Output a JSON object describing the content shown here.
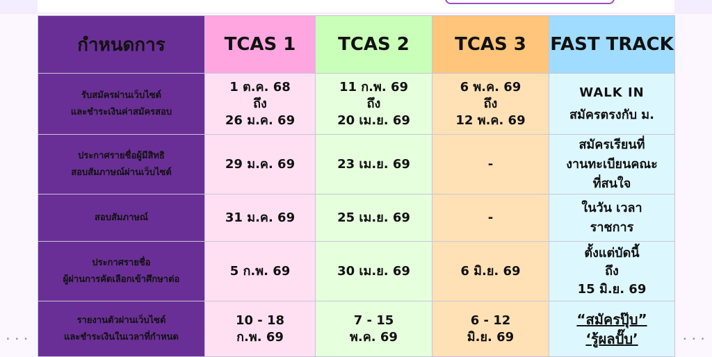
{
  "header": {
    "col0": "กำหนดการ",
    "col1": "TCAS 1",
    "col2": "TCAS 2",
    "col3": "TCAS 3",
    "col4": "FAST TRACK"
  },
  "rows": [
    {
      "label": [
        "รับสมัครผ่านเว็บไซต์",
        "และชำระเงินค่าสมัครสอบ"
      ],
      "tcas1": [
        "1 ต.ค. 68",
        "ถึง",
        "26 ม.ค. 69"
      ],
      "tcas2": [
        "11 ก.พ. 69",
        "ถึง",
        "20 เม.ย. 69"
      ],
      "tcas3": [
        "6 พ.ค. 69",
        "ถึง",
        "12 พ.ค. 69"
      ],
      "fast": [
        "WALK IN",
        "สมัครตรงกับ ม."
      ]
    },
    {
      "label": [
        "ประกาศรายชื่อผู้มีสิทธิ",
        "สอบสัมภาษณ์ผ่านเว็บไซต์"
      ],
      "tcas1": [
        "29 ม.ค. 69"
      ],
      "tcas2": [
        "23 เม.ย. 69"
      ],
      "tcas3": [
        "-"
      ],
      "fast": [
        "สมัครเรียนที่",
        "งานทะเบียนคณะ",
        "ที่สนใจ"
      ]
    },
    {
      "label": [
        "สอบสัมภาษณ์"
      ],
      "tcas1": [
        "31 ม.ค. 69"
      ],
      "tcas2": [
        "25 เม.ย. 69"
      ],
      "tcas3": [
        "-"
      ],
      "fast": [
        "ในวัน เวลา",
        "ราชการ"
      ]
    },
    {
      "label": [
        "ประกาศรายชื่อ",
        "ผู้ผ่านการคัดเลือกเข้าศึกษาต่อ"
      ],
      "tcas1": [
        "5 ก.พ. 69"
      ],
      "tcas2": [
        "30 เม.ย. 69"
      ],
      "tcas3": [
        "6 มิ.ย. 69"
      ],
      "fast": [
        "ตั้งแต่บัดนี้",
        "ถึง",
        "15 มิ.ย. 69"
      ]
    },
    {
      "label": [
        "รายงานตัวผ่านเว็บไซต์",
        "และชำระเงินในเวลาที่กำหนด"
      ],
      "tcas1": [
        "10 - 18",
        "ก.พ. 69"
      ],
      "tcas2": [
        "7 - 15",
        "พ.ค. 69"
      ],
      "tcas3": [
        "6 - 12",
        "มิ.ย. 69"
      ],
      "fast": [
        "“สมัครปุ๊บ”",
        "‘รู้ผลปั๊บ’"
      ]
    }
  ],
  "decor": {
    "left_dots": "...",
    "right_dots": "..."
  },
  "colors": {
    "label_bg": "#6a2f96",
    "tcas1_head": "#ffa6e0",
    "tcas2_head": "#c9ffb8",
    "tcas3_head": "#ffc57a",
    "fast_head": "#9fdcff",
    "date_red": "#f0262a",
    "link_purple": "#5c2e9a"
  }
}
